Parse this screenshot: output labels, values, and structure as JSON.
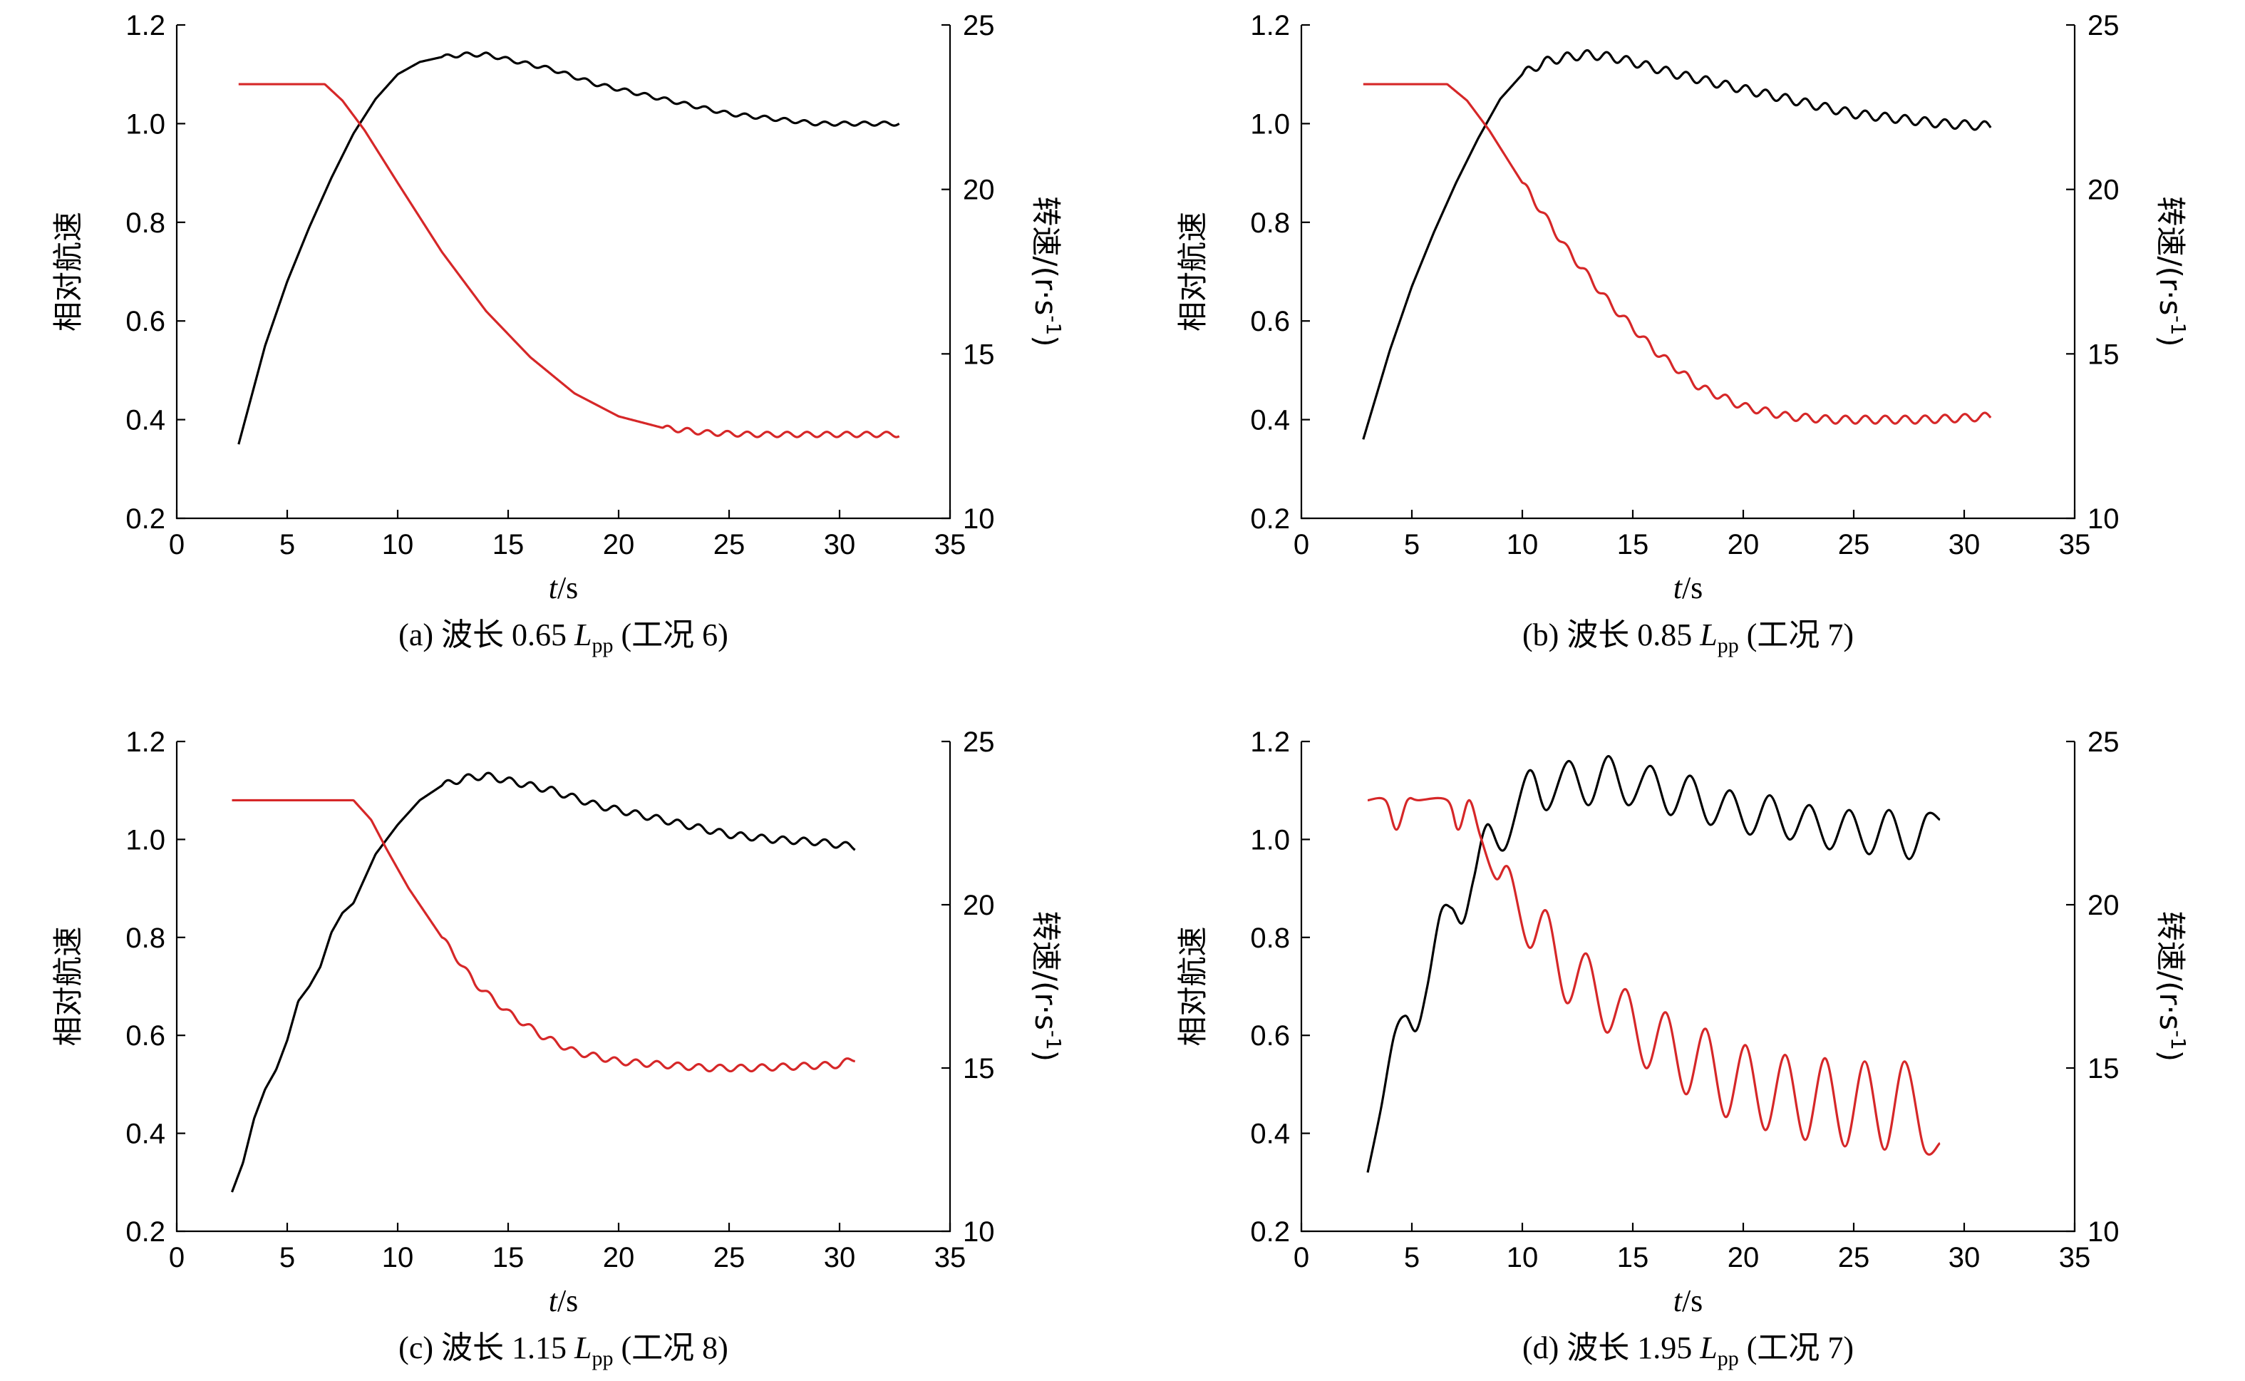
{
  "colors": {
    "speed": "#000000",
    "rpm": "#d62728",
    "axis": "#000000"
  },
  "chart_data": [
    {
      "type": "line",
      "x_range": [
        0,
        35
      ],
      "y_left_range": [
        0.2,
        1.2
      ],
      "y_right_range": [
        10,
        25
      ],
      "xticks": [
        "0",
        "5",
        "10",
        "15",
        "20",
        "25",
        "30",
        "35"
      ],
      "yticks_left": [
        "0.2",
        "0.4",
        "0.6",
        "0.8",
        "1.0",
        "1.2"
      ],
      "yticks_right": [
        "10",
        "15",
        "20",
        "25"
      ],
      "ylabel_left": "相对航速",
      "ylabel_right": "转速/(r·s",
      "ylabel_right_sup": "-1",
      "ylabel_right_end": ")",
      "xlabel_var": "t",
      "xlabel_unit": "/s",
      "caption": {
        "prefix": "(a) 波长 0.65 ",
        "var": "L",
        "sub": "pp",
        "suffix": " (工况 6)"
      },
      "series": [
        {
          "axis": "left",
          "color_key": "speed",
          "x": [
            2.8,
            4,
            5,
            6,
            7,
            8,
            9,
            10,
            11,
            12,
            13,
            14,
            15,
            17,
            19,
            21,
            23,
            25,
            27,
            29,
            31,
            32.7
          ],
          "y": [
            0.35,
            0.55,
            0.68,
            0.79,
            0.89,
            0.98,
            1.05,
            1.1,
            1.125,
            1.135,
            1.14,
            1.14,
            1.13,
            1.11,
            1.08,
            1.06,
            1.04,
            1.02,
            1.01,
            1.0,
            1.0,
            1.0
          ],
          "ripple": 0.004,
          "ripple_period": 0.9,
          "ripple_start": 12
        },
        {
          "axis": "right",
          "color_key": "rpm",
          "x": [
            2.8,
            6.7,
            7.5,
            8.5,
            10,
            12,
            14,
            16,
            18,
            20,
            22,
            24,
            26,
            28,
            30,
            32.7
          ],
          "y": [
            23.2,
            23.2,
            22.7,
            21.8,
            20.2,
            18.1,
            16.3,
            14.9,
            13.8,
            13.1,
            12.75,
            12.6,
            12.55,
            12.55,
            12.55,
            12.55
          ],
          "ripple": 0.08,
          "ripple_period": 0.9,
          "ripple_start": 22
        }
      ]
    },
    {
      "type": "line",
      "x_range": [
        0,
        35
      ],
      "y_left_range": [
        0.2,
        1.2
      ],
      "y_right_range": [
        10,
        25
      ],
      "xticks": [
        "0",
        "5",
        "10",
        "15",
        "20",
        "25",
        "30",
        "35"
      ],
      "yticks_left": [
        "0.2",
        "0.4",
        "0.6",
        "0.8",
        "1.0",
        "1.2"
      ],
      "yticks_right": [
        "10",
        "15",
        "20",
        "25"
      ],
      "ylabel_left": "相对航速",
      "ylabel_right": "转速/(r·s",
      "ylabel_right_sup": "-1",
      "ylabel_right_end": ")",
      "xlabel_var": "t",
      "xlabel_unit": "/s",
      "caption": {
        "prefix": "(b) 波长 0.85 ",
        "var": "L",
        "sub": "pp",
        "suffix": " (工况 7)"
      },
      "series": [
        {
          "axis": "left",
          "color_key": "speed",
          "x": [
            2.8,
            4,
            5,
            6,
            7,
            8,
            9,
            10,
            11,
            12,
            13,
            14,
            15,
            17,
            19,
            21,
            23,
            25,
            27,
            29,
            31.2
          ],
          "y": [
            0.36,
            0.54,
            0.67,
            0.78,
            0.88,
            0.97,
            1.05,
            1.1,
            1.125,
            1.135,
            1.14,
            1.135,
            1.125,
            1.1,
            1.08,
            1.06,
            1.04,
            1.02,
            1.01,
            1.0,
            0.995
          ],
          "ripple": 0.009,
          "ripple_period": 0.9,
          "ripple_start": 10
        },
        {
          "axis": "right",
          "color_key": "rpm",
          "x": [
            2.8,
            6.6,
            7.5,
            8.5,
            10,
            12,
            14,
            16,
            18,
            20,
            22,
            24,
            26,
            28,
            30,
            31.2
          ],
          "y": [
            23.2,
            23.2,
            22.7,
            21.8,
            20.2,
            18.2,
            16.5,
            15.1,
            14.0,
            13.4,
            13.1,
            13.0,
            13.0,
            13.0,
            13.05,
            13.1
          ],
          "ripple": 0.12,
          "ripple_period": 0.9,
          "ripple_start": 10
        }
      ]
    },
    {
      "type": "line",
      "x_range": [
        0,
        35
      ],
      "y_left_range": [
        0.2,
        1.2
      ],
      "y_right_range": [
        10,
        25
      ],
      "xticks": [
        "0",
        "5",
        "10",
        "15",
        "20",
        "25",
        "30",
        "35"
      ],
      "yticks_left": [
        "0.2",
        "0.4",
        "0.6",
        "0.8",
        "1.0",
        "1.2"
      ],
      "yticks_right": [
        "10",
        "15",
        "20",
        "25"
      ],
      "ylabel_left": "相对航速",
      "ylabel_right": "转速/(r·s",
      "ylabel_right_sup": "-1",
      "ylabel_right_end": ")",
      "xlabel_var": "t",
      "xlabel_unit": "/s",
      "caption": {
        "prefix": "(c) 波长 1.15 ",
        "var": "L",
        "sub": "pp",
        "suffix": " (工况 8)"
      },
      "series": [
        {
          "axis": "left",
          "color_key": "speed",
          "x": [
            2.5,
            3,
            3.5,
            4,
            4.5,
            5,
            5.5,
            6,
            6.5,
            7,
            7.5,
            8,
            8.5,
            9,
            10,
            11,
            12,
            13,
            14,
            15,
            17,
            19,
            21,
            23,
            25,
            27,
            29,
            30.7
          ],
          "y": [
            0.28,
            0.34,
            0.43,
            0.49,
            0.53,
            0.59,
            0.67,
            0.7,
            0.74,
            0.81,
            0.85,
            0.87,
            0.92,
            0.97,
            1.03,
            1.08,
            1.11,
            1.125,
            1.13,
            1.12,
            1.1,
            1.07,
            1.05,
            1.03,
            1.01,
            1.0,
            0.995,
            0.985
          ],
          "ripple": 0.007,
          "ripple_period": 0.95,
          "ripple_start": 12
        },
        {
          "axis": "right",
          "color_key": "rpm",
          "x": [
            2.5,
            8.0,
            8.8,
            9.5,
            10.5,
            12,
            13.5,
            15,
            16.5,
            18,
            20,
            22,
            24,
            26,
            28,
            30,
            30.7
          ],
          "y": [
            23.2,
            23.2,
            22.6,
            21.7,
            20.5,
            19.0,
            17.6,
            16.7,
            16.0,
            15.5,
            15.2,
            15.1,
            15.0,
            15.0,
            15.05,
            15.1,
            15.3
          ],
          "ripple": 0.1,
          "ripple_period": 0.95,
          "ripple_start": 12
        }
      ]
    },
    {
      "type": "line",
      "x_range": [
        0,
        35
      ],
      "y_left_range": [
        0.2,
        1.2
      ],
      "y_right_range": [
        10,
        25
      ],
      "xticks": [
        "0",
        "5",
        "10",
        "15",
        "20",
        "25",
        "30",
        "35"
      ],
      "yticks_left": [
        "0.2",
        "0.4",
        "0.6",
        "0.8",
        "1.0",
        "1.2"
      ],
      "yticks_right": [
        "10",
        "15",
        "20",
        "25"
      ],
      "ylabel_left": "相对航速",
      "ylabel_right": "转速/(r·s",
      "ylabel_right_sup": "-1",
      "ylabel_right_end": ")",
      "xlabel_var": "t",
      "xlabel_unit": "/s",
      "caption": {
        "prefix": "(d) 波长 1.95 ",
        "var": "L",
        "sub": "pp",
        "suffix": " (工况 7)"
      },
      "series": [
        {
          "axis": "left",
          "color_key": "speed",
          "x": [
            3.0,
            3.6,
            4.2,
            4.7,
            5.2,
            5.7,
            6.3,
            6.8,
            7.3,
            7.8,
            8.4,
            9.2,
            10.3,
            11.1,
            12.1,
            13.0,
            13.9,
            14.8,
            15.8,
            16.7,
            17.6,
            18.5,
            19.4,
            20.3,
            21.2,
            22.1,
            23.0,
            23.9,
            24.8,
            25.7,
            26.6,
            27.5,
            28.3,
            28.9
          ],
          "y": [
            0.32,
            0.45,
            0.6,
            0.64,
            0.61,
            0.7,
            0.85,
            0.86,
            0.83,
            0.92,
            1.03,
            0.98,
            1.14,
            1.06,
            1.16,
            1.07,
            1.17,
            1.07,
            1.15,
            1.05,
            1.13,
            1.03,
            1.1,
            1.01,
            1.09,
            1.0,
            1.07,
            0.98,
            1.06,
            0.97,
            1.06,
            0.96,
            1.05,
            1.04
          ],
          "smooth": true
        },
        {
          "axis": "right",
          "color_key": "rpm",
          "x": [
            3.0,
            3.8,
            4.3,
            4.8,
            5.3,
            6.6,
            7.1,
            7.6,
            8.1,
            8.8,
            9.4,
            10.3,
            11.1,
            12.0,
            12.9,
            13.8,
            14.7,
            15.6,
            16.5,
            17.4,
            18.3,
            19.2,
            20.1,
            21.0,
            21.9,
            22.8,
            23.7,
            24.6,
            25.5,
            26.4,
            27.3,
            28.2,
            28.9
          ],
          "y": [
            23.2,
            23.2,
            22.3,
            23.2,
            23.2,
            23.2,
            22.3,
            23.2,
            22.1,
            20.8,
            21.1,
            18.7,
            19.8,
            17.0,
            18.5,
            16.1,
            17.4,
            15.0,
            16.7,
            14.2,
            16.2,
            13.5,
            15.7,
            13.1,
            15.4,
            12.8,
            15.3,
            12.6,
            15.2,
            12.5,
            15.2,
            12.5,
            12.7
          ],
          "smooth": true
        }
      ]
    }
  ]
}
